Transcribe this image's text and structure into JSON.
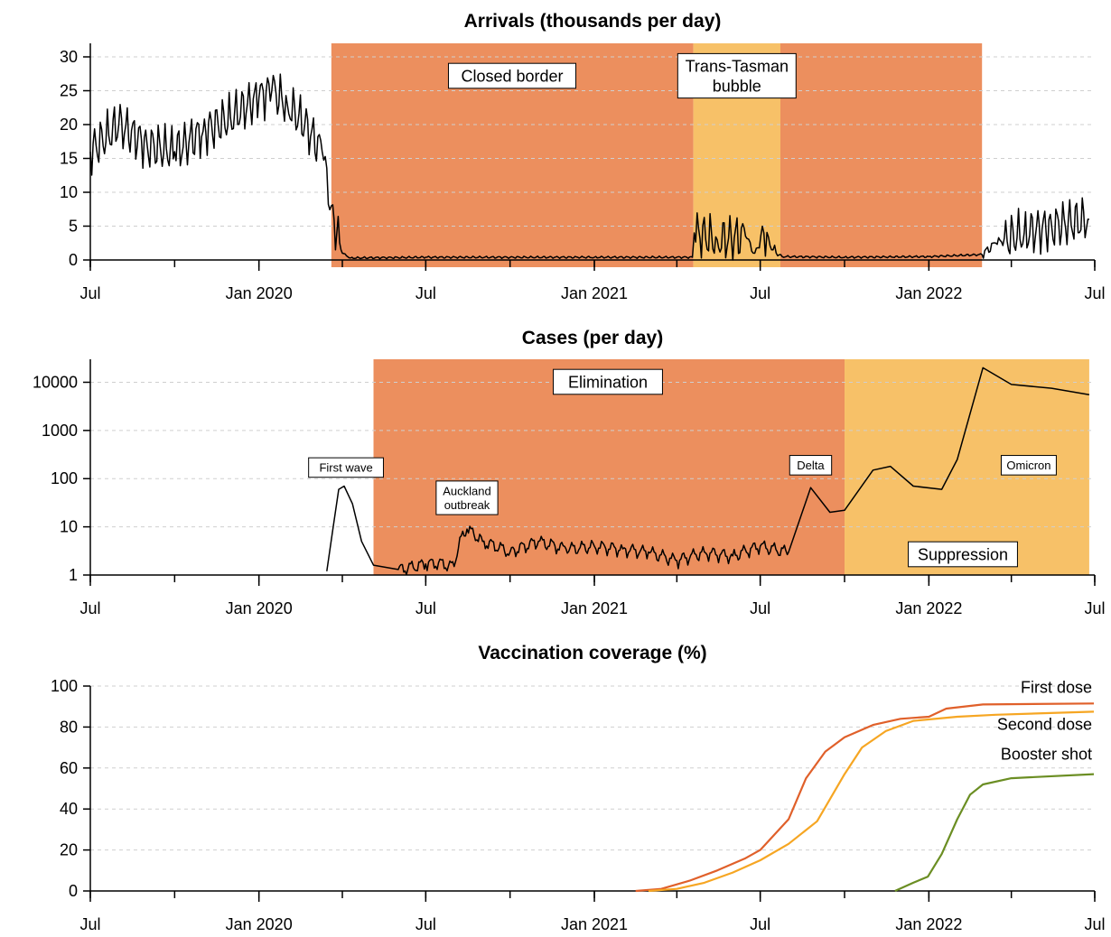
{
  "chart_data": [
    {
      "type": "line",
      "title": "Arrivals (thousands per day)",
      "x_tick_labels": [
        "Jul",
        "Jan 2020",
        "Jul",
        "Jan 2021",
        "Jul",
        "Jan 2022",
        "Jul"
      ],
      "x_ticks": [
        "2019-07-01",
        "2020-01-01",
        "2020-07-01",
        "2021-01-01",
        "2021-07-01",
        "2022-01-01",
        "2022-07-01"
      ],
      "xlim": [
        "2019-07-01",
        "2022-07-01"
      ],
      "ylim": [
        0,
        32
      ],
      "y_ticks": [
        0,
        5,
        10,
        15,
        20,
        25,
        30
      ],
      "grid": "horizontal dashed",
      "regions": [
        {
          "start": "2020-03-20",
          "end": "2021-04-19",
          "color": "#ec8f5e",
          "label": "Closed border"
        },
        {
          "start": "2021-04-19",
          "end": "2021-07-23",
          "color": "#f7c168",
          "label": "Trans-Tasman bubble"
        },
        {
          "start": "2021-07-23",
          "end": "2022-02-28",
          "color": "#ec8f5e",
          "label": ""
        }
      ],
      "series": [
        {
          "color": "#000000",
          "points": [
            [
              "2019-07-01",
              16
            ],
            [
              "2019-08-01",
              20
            ],
            [
              "2019-09-01",
              17
            ],
            [
              "2019-10-01",
              16
            ],
            [
              "2019-11-01",
              19
            ],
            [
              "2019-12-01",
              21
            ],
            [
              "2020-01-01",
              24
            ],
            [
              "2020-01-15",
              25
            ],
            [
              "2020-02-01",
              23
            ],
            [
              "2020-02-20",
              20
            ],
            [
              "2020-03-10",
              16
            ],
            [
              "2020-03-20",
              8
            ],
            [
              "2020-03-26",
              4
            ],
            [
              "2020-04-01",
              1
            ],
            [
              "2020-04-10",
              0.3
            ],
            [
              "2020-07-01",
              0.4
            ],
            [
              "2020-10-01",
              0.4
            ],
            [
              "2021-01-01",
              0.4
            ],
            [
              "2021-04-18",
              0.4
            ],
            [
              "2021-04-20",
              4
            ],
            [
              "2021-05-15",
              3
            ],
            [
              "2021-06-15",
              3.5
            ],
            [
              "2021-06-25",
              1
            ],
            [
              "2021-07-05",
              4
            ],
            [
              "2021-07-15",
              1.5
            ],
            [
              "2021-07-25",
              0.5
            ],
            [
              "2021-10-01",
              0.4
            ],
            [
              "2022-01-01",
              0.5
            ],
            [
              "2022-02-28",
              0.8
            ],
            [
              "2022-03-15",
              2.5
            ],
            [
              "2022-04-15",
              4
            ],
            [
              "2022-05-15",
              5
            ],
            [
              "2022-06-25",
              6
            ]
          ]
        }
      ]
    },
    {
      "type": "line",
      "title": "Cases (per day)",
      "y_scale": "log",
      "x_tick_labels": [
        "Jul",
        "Jan 2020",
        "Jul",
        "Jan 2021",
        "Jul",
        "Jan 2022",
        "Jul"
      ],
      "x_ticks": [
        "2019-07-01",
        "2020-01-01",
        "2020-07-01",
        "2021-01-01",
        "2021-07-01",
        "2022-01-01",
        "2022-07-01"
      ],
      "xlim": [
        "2019-07-01",
        "2022-07-01"
      ],
      "ylim": [
        1,
        30000
      ],
      "y_ticks": [
        1,
        10,
        100,
        1000,
        10000
      ],
      "y_tick_labels": [
        "1",
        "10",
        "100",
        "1000",
        "10000"
      ],
      "grid": "horizontal dashed",
      "regions": [
        {
          "start": "2020-05-05",
          "end": "2021-10-01",
          "color": "#ec8f5e",
          "label": "Elimination"
        },
        {
          "start": "2021-10-01",
          "end": "2022-06-25",
          "color": "#f7c168",
          "label": "Suppression"
        }
      ],
      "annotations": [
        {
          "date": "2020-04-05",
          "value": 170,
          "text": "First wave"
        },
        {
          "date": "2020-08-15",
          "value": 40,
          "text": "Auckland outbreak"
        },
        {
          "date": "2021-08-25",
          "value": 190,
          "text": "Delta"
        },
        {
          "date": "2022-04-20",
          "value": 190,
          "text": "Omicron"
        }
      ],
      "series": [
        {
          "color": "#000000",
          "points": [
            [
              "2020-03-15",
              1.2
            ],
            [
              "2020-03-22",
              10
            ],
            [
              "2020-03-28",
              60
            ],
            [
              "2020-04-03",
              70
            ],
            [
              "2020-04-12",
              30
            ],
            [
              "2020-04-22",
              5
            ],
            [
              "2020-05-05",
              1.6
            ],
            [
              "2020-06-01",
              1.3
            ],
            [
              "2020-07-01",
              1.7
            ],
            [
              "2020-07-15",
              1.8
            ],
            [
              "2020-08-01",
              1.5
            ],
            [
              "2020-08-15",
              9
            ],
            [
              "2020-09-01",
              5
            ],
            [
              "2020-10-01",
              3
            ],
            [
              "2020-11-01",
              5
            ],
            [
              "2020-12-01",
              3.5
            ],
            [
              "2021-01-01",
              4
            ],
            [
              "2021-02-01",
              3.5
            ],
            [
              "2021-03-01",
              3
            ],
            [
              "2021-04-01",
              2
            ],
            [
              "2021-05-01",
              3
            ],
            [
              "2021-06-01",
              2.5
            ],
            [
              "2021-07-01",
              4
            ],
            [
              "2021-08-01",
              3
            ],
            [
              "2021-08-25",
              65
            ],
            [
              "2021-09-15",
              20
            ],
            [
              "2021-10-01",
              22
            ],
            [
              "2021-11-01",
              150
            ],
            [
              "2021-11-20",
              180
            ],
            [
              "2021-12-15",
              70
            ],
            [
              "2022-01-15",
              60
            ],
            [
              "2022-02-01",
              250
            ],
            [
              "2022-03-01",
              20000
            ],
            [
              "2022-04-01",
              9000
            ],
            [
              "2022-05-15",
              7500
            ],
            [
              "2022-06-25",
              5500
            ]
          ]
        }
      ]
    },
    {
      "type": "line",
      "title": "Vaccination coverage (%)",
      "x_tick_labels": [
        "Jul",
        "Jan 2020",
        "Jul",
        "Jan 2021",
        "Jul",
        "Jan 2022",
        "Jul"
      ],
      "x_ticks": [
        "2019-07-01",
        "2020-01-01",
        "2020-07-01",
        "2021-01-01",
        "2021-07-01",
        "2022-01-01",
        "2022-07-01"
      ],
      "xlim": [
        "2019-07-01",
        "2022-07-01"
      ],
      "ylim": [
        0,
        100
      ],
      "y_ticks": [
        0,
        20,
        40,
        60,
        80,
        100
      ],
      "grid": "horizontal dashed",
      "series": [
        {
          "name": "First dose",
          "color": "#e0602a",
          "points": [
            [
              "2021-02-15",
              0
            ],
            [
              "2021-03-15",
              1
            ],
            [
              "2021-04-15",
              5
            ],
            [
              "2021-05-15",
              10
            ],
            [
              "2021-06-15",
              16
            ],
            [
              "2021-07-01",
              20
            ],
            [
              "2021-08-01",
              35
            ],
            [
              "2021-08-20",
              55
            ],
            [
              "2021-09-10",
              68
            ],
            [
              "2021-10-01",
              75
            ],
            [
              "2021-11-01",
              81
            ],
            [
              "2021-12-01",
              84
            ],
            [
              "2022-01-01",
              85
            ],
            [
              "2022-01-20",
              89
            ],
            [
              "2022-03-01",
              91
            ],
            [
              "2022-06-30",
              91.5
            ]
          ]
        },
        {
          "name": "Second dose",
          "color": "#f6a623",
          "points": [
            [
              "2021-03-01",
              0
            ],
            [
              "2021-04-01",
              1
            ],
            [
              "2021-05-01",
              4
            ],
            [
              "2021-06-01",
              9
            ],
            [
              "2021-07-01",
              15
            ],
            [
              "2021-08-01",
              23
            ],
            [
              "2021-09-01",
              34
            ],
            [
              "2021-10-01",
              57
            ],
            [
              "2021-10-20",
              70
            ],
            [
              "2021-11-15",
              78
            ],
            [
              "2021-12-15",
              83
            ],
            [
              "2022-02-01",
              85
            ],
            [
              "2022-03-15",
              86
            ],
            [
              "2022-06-30",
              87.5
            ]
          ]
        },
        {
          "name": "Booster shot",
          "color": "#6b8e23",
          "points": [
            [
              "2021-11-25",
              0
            ],
            [
              "2021-12-15",
              4
            ],
            [
              "2021-12-31",
              7
            ],
            [
              "2022-01-15",
              18
            ],
            [
              "2022-02-01",
              35
            ],
            [
              "2022-02-15",
              47
            ],
            [
              "2022-03-01",
              52
            ],
            [
              "2022-04-01",
              55
            ],
            [
              "2022-06-30",
              57
            ]
          ]
        }
      ]
    }
  ]
}
